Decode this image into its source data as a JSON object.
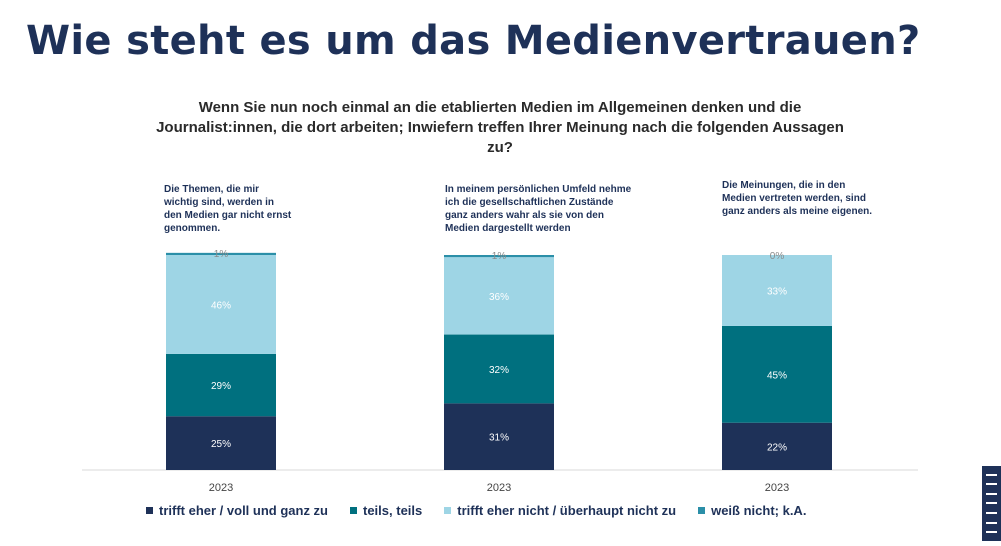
{
  "page": {
    "title": "Wie steht es um das Medienvertrauen?",
    "question": "Wenn Sie nun noch einmal an die etablierten Medien im Allgemeinen denken und die Journalist:innen, die dort arbeiten; Inwiefern treffen Ihrer Meinung nach die folgenden Aussagen zu?"
  },
  "colors": {
    "trifft_zu": "#1e3158",
    "teils": "#00707f",
    "trifft_nicht_zu": "#9ed5e5",
    "weiss_nicht": "#2b8fa8"
  },
  "corner_icon": "list-menu-icon",
  "chart_data": {
    "type": "bar",
    "stacked": true,
    "unit": "%",
    "ylim": [
      0,
      100
    ],
    "groups": [
      {
        "caption": "Die Themen, die mir wichtig sind, werden in den Medien gar nicht ernst genommen.",
        "category": "2023",
        "values": [
          25,
          29,
          46,
          1
        ],
        "labels": [
          "25%",
          "29%",
          "46%",
          "1%"
        ]
      },
      {
        "caption": "In meinem persönlichen Umfeld nehme ich die gesellschaftlichen Zustände ganz anders wahr als sie von den Medien dargestellt werden",
        "category": "2023",
        "values": [
          31,
          32,
          36,
          1
        ],
        "labels": [
          "31%",
          "32%",
          "36%",
          "1%"
        ]
      },
      {
        "caption": "Die Meinungen, die in den Medien vertreten werden, sind ganz anders als meine eigenen.",
        "category": "2023",
        "values": [
          22,
          45,
          33,
          0
        ],
        "labels": [
          "22%",
          "45%",
          "33%",
          "0%"
        ]
      }
    ],
    "series": [
      {
        "name": "trifft eher / voll und ganz zu",
        "color": "#1e3158"
      },
      {
        "name": "teils, teils",
        "color": "#00707f"
      },
      {
        "name": "trifft eher nicht / überhaupt nicht zu",
        "color": "#9ed5e5"
      },
      {
        "name": "weiß nicht; k.A.",
        "color": "#2b8fa8"
      }
    ],
    "legend_position": "bottom",
    "grid": false
  }
}
